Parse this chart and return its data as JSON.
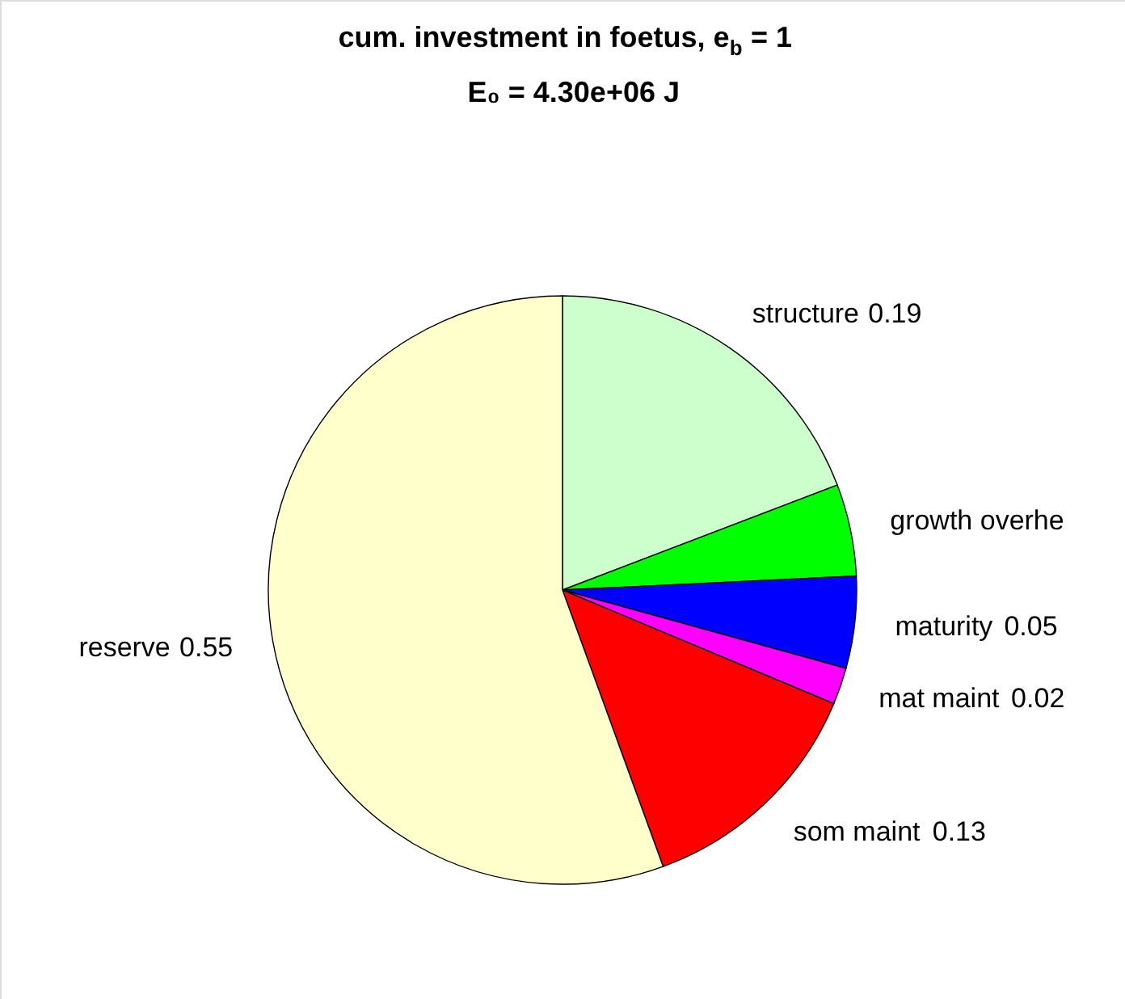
{
  "chart_data": {
    "type": "pie",
    "title": "cum. investment in foetus, e$_{b}$ = 1",
    "subtitle": "E₀ = 4.30e+06 J",
    "categories": [
      "structure",
      "growth overhe",
      "maturity",
      "mat maint",
      "som maint",
      "reserve"
    ],
    "values": [
      0.19,
      0.05,
      0.05,
      0.02,
      0.13,
      0.55
    ],
    "value_labels": [
      "0.19",
      null,
      "0.05",
      "0.02",
      "0.13",
      "0.55"
    ],
    "colors": [
      "#ccffcc",
      "#00ff00",
      "#0000ff",
      "#ff00ff",
      "#ff0000",
      "#ffffcc"
    ]
  }
}
